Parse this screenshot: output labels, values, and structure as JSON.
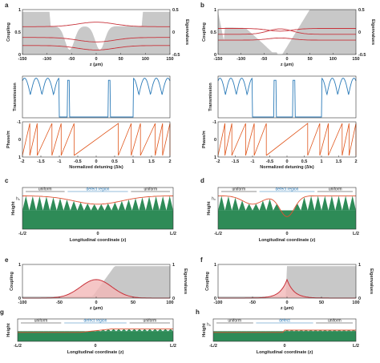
{
  "panels": {
    "a": {
      "letter": "a",
      "top": {
        "ylabel": "Coupling",
        "ylabel2": "Eigenvalues",
        "yticks": [
          "0",
          "0.5",
          "1"
        ],
        "yticks2": [
          "-0.5",
          "0",
          "0.5"
        ],
        "xticks": [
          "-150",
          "-100",
          "-50",
          "0",
          "50",
          "100",
          "150"
        ],
        "xlabel": "z (μm)"
      },
      "mid": {
        "ylabel": "Transmission"
      },
      "bot": {
        "ylabel": "Phase/π",
        "yticks": [
          "1",
          "0",
          "-1"
        ],
        "xticks": [
          "-2",
          "-1.5",
          "-1",
          "-0.5",
          "0",
          "0.5",
          "1",
          "1.5",
          "2"
        ],
        "xlabel": "Normalized detuning (δ/κ)"
      }
    },
    "b": {
      "letter": "b",
      "top": {
        "ylabel": "Coupling",
        "ylabel2": "Eigenvalues",
        "yticks": [
          "0",
          "0.5",
          "1"
        ],
        "yticks2": [
          "-0.5",
          "0",
          "0.5"
        ],
        "xticks": [
          "-150",
          "-100",
          "-50",
          "0",
          "50",
          "100",
          "150"
        ],
        "xlabel": "z (μm)"
      },
      "mid": {
        "ylabel": "Transmission"
      },
      "bot": {
        "ylabel": "Phase/π",
        "yticks": [
          "1",
          "0",
          "-1"
        ],
        "xticks": [
          "-2",
          "-1.5",
          "-1",
          "-0.5",
          "0",
          "0.5",
          "1",
          "1.5",
          "2"
        ],
        "xlabel": "Normalized detuning (δ/κ)"
      }
    },
    "c": {
      "letter": "c",
      "ylabel": "Height",
      "h0": "h₀",
      "left_label": "uniform",
      "center_label": "defect region",
      "right_label": "uniform",
      "xticks": [
        "-L/2",
        "0",
        "L/2"
      ],
      "xlabel": "Longitudinal coordinate (z)"
    },
    "d": {
      "letter": "d",
      "ylabel": "Height",
      "h0": "h₀",
      "left_label": "uniform",
      "center_label": "defect region",
      "right_label": "uniform",
      "xticks": [
        "-L/2",
        "0",
        "L/2"
      ],
      "xlabel": "Longitudinal coordinate (z)"
    },
    "e": {
      "letter": "e",
      "ylabel": "Coupling",
      "ylabel2": "Eigenvalues",
      "yticks": [
        "0",
        "1"
      ],
      "yticks2": [
        "0",
        "1"
      ],
      "xticks": [
        "-100",
        "-50",
        "0",
        "50",
        "100"
      ],
      "xlabel": "z (μm)"
    },
    "f": {
      "letter": "f",
      "ylabel": "Coupling",
      "ylabel2": "Eigenvalues",
      "yticks": [
        "0",
        "1"
      ],
      "yticks2": [
        "0",
        "1"
      ],
      "xticks": [
        "-100",
        "-50",
        "0",
        "50",
        "100"
      ],
      "xlabel": "z (μm)"
    },
    "g": {
      "letter": "g",
      "ylabel": "Height",
      "left_label": "uniform",
      "center_label": "defect region",
      "right_label": "uniform",
      "xticks": [
        "-L/2",
        "0",
        "L/2"
      ],
      "xlabel": "Longitudinal coordinate (z)"
    },
    "h": {
      "letter": "h",
      "ylabel": "Height",
      "h0": "h₀",
      "left_label": "uniform",
      "center_label": "defect",
      "right_label": "uniform",
      "xticks": [
        "-L/2",
        "0",
        "L/2"
      ],
      "xlabel": "Longitudinal coordinate (z)"
    }
  },
  "colors": {
    "accent_blue": "#2a7ab8",
    "phase_orange": "#e0561c",
    "eigen_red": "#c8323a",
    "gray_fill": "#c8c8c8",
    "green_fill": "#2e8b57",
    "profile_red": "#e05030"
  }
}
